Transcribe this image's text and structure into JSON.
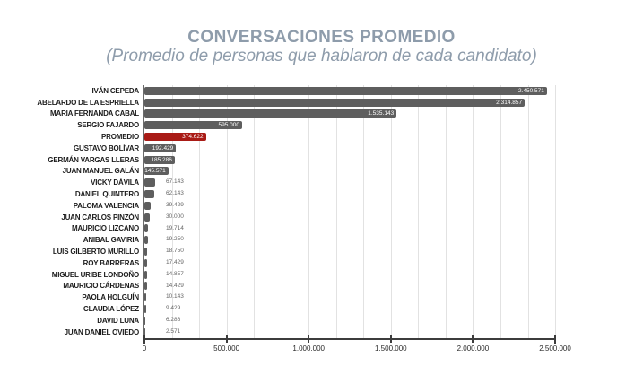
{
  "header": {
    "title": "CONVERSACIONES PROMEDIO",
    "subtitle": "(Promedio de personas que hablaron de cada candidato)"
  },
  "chart_data": {
    "type": "bar",
    "orientation": "horizontal",
    "title": "CONVERSACIONES PROMEDIO",
    "subtitle": "(Promedio de personas que hablaron de cada candidato)",
    "categories": [
      "IVÁN CEPEDA",
      "ABELARDO DE LA ESPRIELLA",
      "MARIA FERNANDA CABAL",
      "SERGIO FAJARDO",
      "PROMEDIO",
      "GUSTAVO BOLÍVAR",
      "GERMÁN VARGAS LLERAS",
      "JUAN MANUEL GALÁN",
      "VICKY DÁVILA",
      "DANIEL QUINTERO",
      "PALOMA VALENCIA",
      "JUAN CARLOS PINZÓN",
      "MAURICIO LIZCANO",
      "ANIBAL GAVIRIA",
      "LUIS GILBERTO MURILLO",
      "ROY BARRERAS",
      "MIGUEL URIBE LONDOÑO",
      "MAURICIO CÁRDENAS",
      "PAOLA HOLGUÍN",
      "CLAUDIA LÓPEZ",
      "DAVID LUNA",
      "JUAN DANIEL OVIEDO"
    ],
    "values": [
      2450571,
      2314857,
      1535143,
      595000,
      374622,
      192429,
      185286,
      145571,
      67143,
      62143,
      39429,
      30000,
      19714,
      19250,
      18750,
      17429,
      14857,
      14429,
      10143,
      9429,
      6286,
      2571
    ],
    "value_labels": [
      "2.450.571",
      "2.314.857",
      "1.535.143",
      "595.000",
      "374.622",
      "192.429",
      "185.286",
      "145.571",
      "67.143",
      "62.143",
      "39.429",
      "30.000",
      "19.714",
      "19.250",
      "18.750",
      "17.429",
      "14.857",
      "14.429",
      "10.143",
      "9.429",
      "6.286",
      "2.571"
    ],
    "highlight": {
      "category": "PROMEDIO",
      "index": 4,
      "color": "#a91b16"
    },
    "bar_color": "#5e5e5e",
    "xlim": [
      0,
      2500000
    ],
    "x_ticks": [
      0,
      500000,
      1000000,
      1500000,
      2000000,
      2500000
    ],
    "x_tick_labels": [
      "0",
      "500.000",
      "1.000.000",
      "1.500.000",
      "2.000.000",
      "2.500.000"
    ],
    "grid": {
      "visible": true,
      "orientation": "vertical",
      "minor_divisions_per_axis": 15
    },
    "legend": "none"
  },
  "colors": {
    "title_text": "#8e9cab",
    "bar": "#5e5e5e",
    "highlight_bar": "#a91b16",
    "value_text_inside": "#ffffff",
    "value_text_outside": "#666666",
    "category_text": "#1c1c1c",
    "gridline": "#e2e2e2",
    "axis": "#3c3c3c",
    "background": "#ffffff"
  }
}
